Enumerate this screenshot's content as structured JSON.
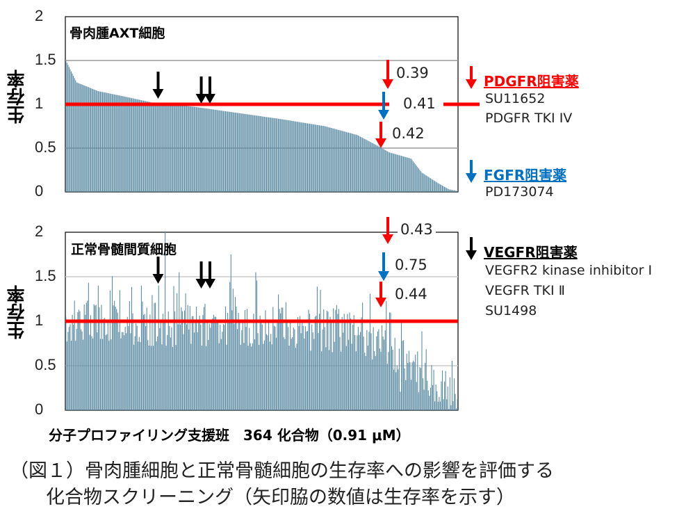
{
  "chart_data": [
    {
      "type": "bar",
      "title": "骨肉腫AXT細胞",
      "ylabel": "生存率",
      "ylim": [
        0,
        2
      ],
      "yticks": [
        "0",
        "0.5",
        "1",
        "1.5",
        "2"
      ],
      "n_compounds": 364,
      "sorted": "descending",
      "curve_keypoints": [
        [
          0,
          1.5
        ],
        [
          2,
          1.45
        ],
        [
          6,
          1.35
        ],
        [
          10,
          1.25
        ],
        [
          20,
          1.2
        ],
        [
          30,
          1.15
        ],
        [
          50,
          1.1
        ],
        [
          80,
          1.02
        ],
        [
          120,
          0.97
        ],
        [
          160,
          0.9
        ],
        [
          200,
          0.83
        ],
        [
          240,
          0.75
        ],
        [
          270,
          0.65
        ],
        [
          290,
          0.52
        ],
        [
          300,
          0.45
        ],
        [
          320,
          0.38
        ],
        [
          330,
          0.22
        ],
        [
          345,
          0.1
        ],
        [
          355,
          0.03
        ],
        [
          363,
          0.01
        ]
      ],
      "reference_line": 1,
      "annotations": [
        {
          "index": 86,
          "color": "black"
        },
        {
          "index": 126,
          "color": "black"
        },
        {
          "index": 134,
          "color": "black"
        },
        {
          "index": 299,
          "color": "red",
          "label": "0.39"
        },
        {
          "index": 295,
          "color": "blue",
          "label": "0.41"
        },
        {
          "index": 292,
          "color": "red",
          "label": "0.42"
        }
      ]
    },
    {
      "type": "bar",
      "title": "正常骨髄間質細胞",
      "ylabel": "生存率",
      "ylim": [
        0,
        2
      ],
      "yticks": [
        "0",
        "0.5",
        "1",
        "1.5",
        "2"
      ],
      "n_compounds": 364,
      "trend_keypoints": [
        [
          0,
          1.0
        ],
        [
          250,
          0.9
        ],
        [
          300,
          0.7
        ],
        [
          330,
          0.45
        ],
        [
          363,
          0.15
        ]
      ],
      "spikes": [
        [
          92,
          2.0
        ],
        [
          105,
          1.55
        ],
        [
          153,
          1.75
        ],
        [
          176,
          1.55
        ],
        [
          30,
          1.4
        ],
        [
          50,
          1.35
        ],
        [
          70,
          1.4
        ],
        [
          86,
          1.4
        ],
        [
          300,
          1.1
        ]
      ],
      "reference_line": 1,
      "annotations": [
        {
          "index": 86,
          "color": "black"
        },
        {
          "index": 126,
          "color": "black"
        },
        {
          "index": 134,
          "color": "black"
        },
        {
          "index": 299,
          "color": "red",
          "label": "0.43"
        },
        {
          "index": 295,
          "color": "blue",
          "label": "0.75"
        },
        {
          "index": 292,
          "color": "red",
          "label": "0.44"
        }
      ]
    }
  ],
  "xlabel": "分子プロファイリング支援班　364 化合物（0.91 μM）",
  "legend": [
    {
      "title": "PDGFR阻害薬",
      "color": "#ff0000",
      "items": [
        "SU11652",
        "PDGFR TKI IV"
      ]
    },
    {
      "title": "FGFR阻害薬",
      "color": "#0070c0",
      "items": [
        "PD173074"
      ]
    },
    {
      "title": "VEGFR阻害薬",
      "color": "#000000",
      "items": [
        "VEGFR2 kinase inhibitor I",
        "VEGFR TKI Ⅱ",
        "SU1498"
      ]
    }
  ],
  "caption": [
    "（図１）骨肉腫細胞と正常骨髄細胞の生存率への影響を評価する",
    "化合物スクリーニング（矢印脇の数値は生存率を示す）"
  ],
  "colors": {
    "bar": "#5b8ba3",
    "ref": "#ff0000",
    "red": "#ff0000",
    "blue": "#0070c0",
    "black": "#000000"
  }
}
